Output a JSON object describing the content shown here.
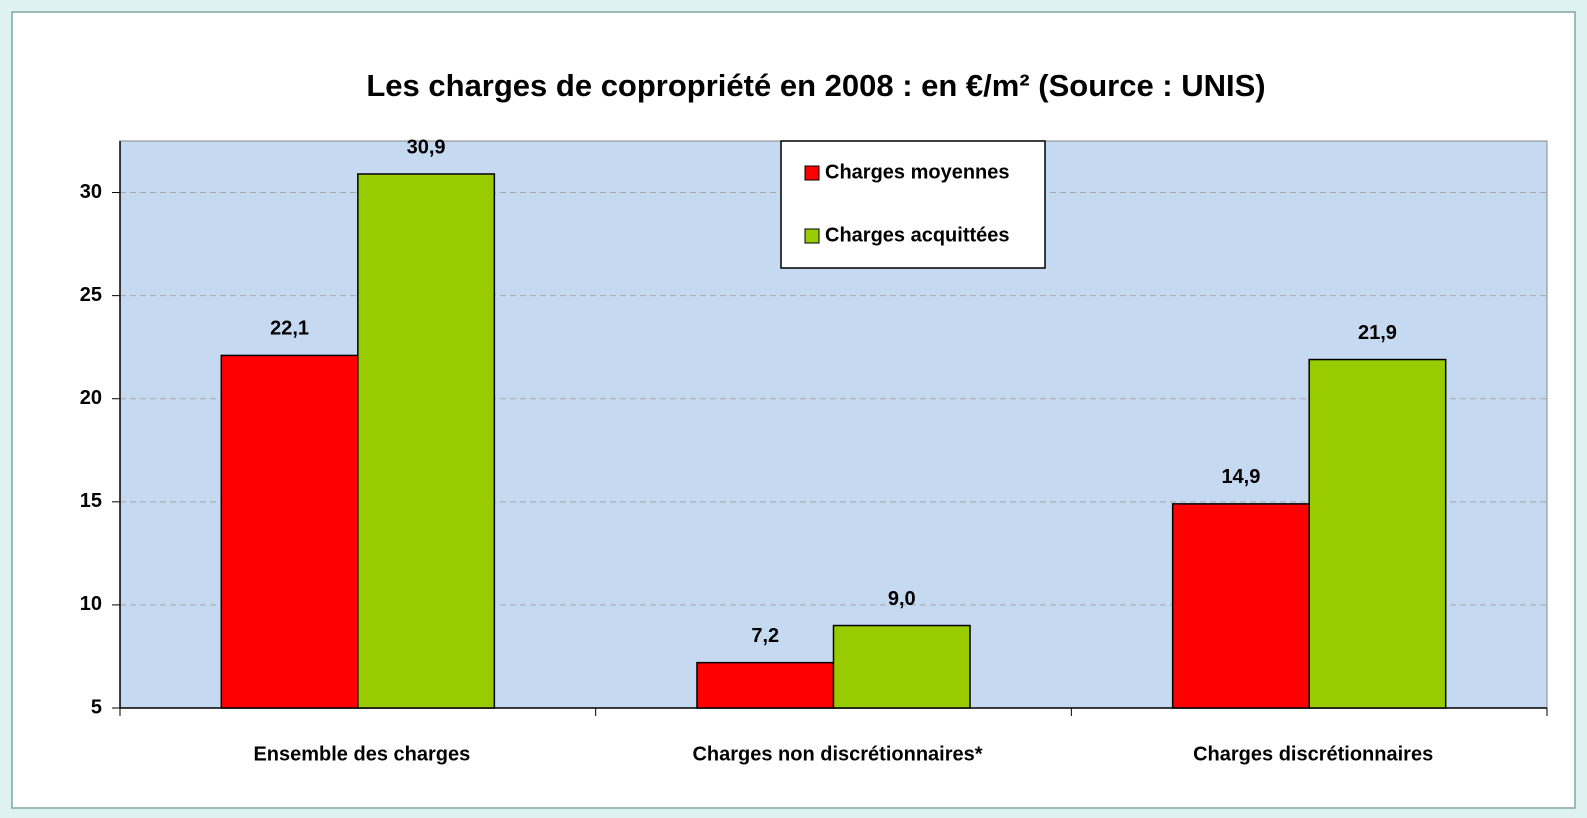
{
  "chart_data": {
    "type": "bar",
    "title": "Les charges de copropriété en 2008 : en €/m² (Source : UNIS)",
    "categories": [
      "Ensemble des charges",
      "Charges non discrétionnaires*",
      "Charges discrétionnaires"
    ],
    "series": [
      {
        "name": "Charges moyennes",
        "color": "#ff0000",
        "values": [
          22.1,
          7.2,
          14.9
        ],
        "value_labels": [
          "22,1",
          "7,2",
          "14,9"
        ]
      },
      {
        "name": "Charges acquittées",
        "color": "#99cc00",
        "values": [
          30.9,
          9.0,
          21.9
        ],
        "value_labels": [
          "30,9",
          "9,0",
          "21,9"
        ]
      }
    ],
    "ylim": [
      5,
      32.5
    ],
    "yticks": [
      5,
      10,
      15,
      20,
      25,
      30
    ],
    "grid": true,
    "legend": "top"
  }
}
